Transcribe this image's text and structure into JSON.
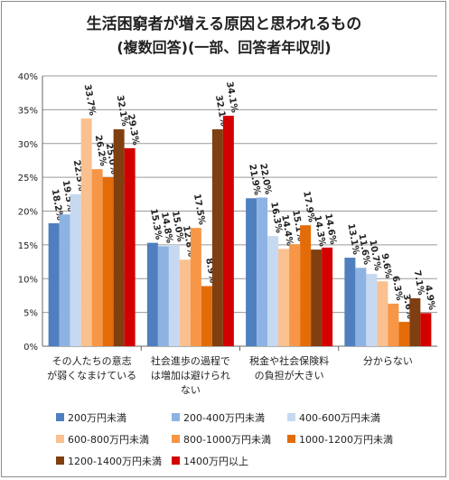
{
  "chart_data": {
    "type": "bar",
    "title_lines": [
      "生活困窮者が増える原因と思われるもの",
      "(複数回答)(一部、回答者年収別)"
    ],
    "categories": [
      [
        "その人たちの意志",
        "が弱くなまけている"
      ],
      [
        "社会進歩の過程で",
        "は増加は避けられ",
        "ない"
      ],
      [
        "税金や社会保険料",
        "の負担が大きい"
      ],
      [
        "分からない"
      ]
    ],
    "series": [
      {
        "name": "200万円未満",
        "color": "#4f7fbf",
        "values": [
          18.2,
          15.3,
          21.9,
          13.1
        ]
      },
      {
        "name": "200-400万円未満",
        "color": "#8db3e2",
        "values": [
          19.5,
          14.8,
          22.0,
          11.6
        ]
      },
      {
        "name": "400-600万円未満",
        "color": "#c6d9f1",
        "values": [
          22.5,
          15.0,
          16.3,
          10.7
        ]
      },
      {
        "name": "600-800万円未満",
        "color": "#fac090",
        "values": [
          33.7,
          12.8,
          14.4,
          9.6
        ]
      },
      {
        "name": "800-1000万円未満",
        "color": "#f79646",
        "values": [
          26.2,
          17.5,
          15.1,
          6.3
        ]
      },
      {
        "name": "1000-1200万円未満",
        "color": "#e36c09",
        "values": [
          25.0,
          8.9,
          17.9,
          3.6
        ]
      },
      {
        "name": "1200-1400万円未満",
        "color": "#7f3f10",
        "values": [
          32.1,
          32.1,
          14.3,
          7.1
        ]
      },
      {
        "name": "1400万円以上",
        "color": "#d40000",
        "values": [
          29.3,
          34.1,
          14.6,
          4.9
        ]
      }
    ],
    "y_ticks": [
      "0%",
      "5%",
      "10%",
      "15%",
      "20%",
      "25%",
      "30%",
      "35%",
      "40%"
    ],
    "ylim": [
      0,
      40
    ],
    "grid": true,
    "legend_position": "bottom"
  }
}
